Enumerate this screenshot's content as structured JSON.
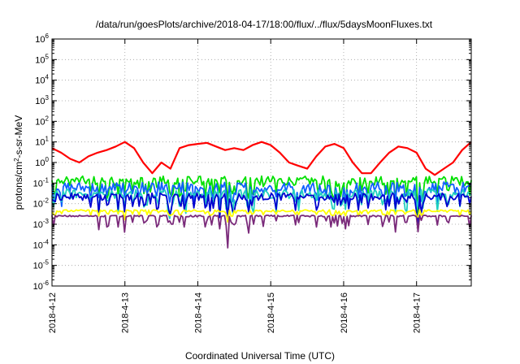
{
  "chart_data": {
    "type": "line",
    "title": "/data/run/goesPlots/archive/2018-04-17/18:00/flux/../flux/5daysMoonFluxes.txt",
    "xlabel": "Coordinated Universal Time (UTC)",
    "ylabel": {
      "pre": "protons/cm",
      "sup": "2",
      "post": "-s-sr-MeV"
    },
    "x_ticks": [
      "2018-4-12",
      "2018-4-13",
      "2018-4-14",
      "2018-4-15",
      "2018-4-16",
      "2018-4-17"
    ],
    "xlim": [
      "2018-04-12T00:00",
      "2018-04-17T18:00"
    ],
    "y_scale": "log",
    "ylim": [
      1e-06,
      1000000.0
    ],
    "y_ticks": [
      {
        "base": "10",
        "exp": "6"
      },
      {
        "base": "10",
        "exp": "5"
      },
      {
        "base": "10",
        "exp": "4"
      },
      {
        "base": "10",
        "exp": "3"
      },
      {
        "base": "10",
        "exp": "2"
      },
      {
        "base": "10",
        "exp": "1"
      },
      {
        "base": "10",
        "exp": "0"
      },
      {
        "base": "10",
        "exp": "-1"
      },
      {
        "base": "10",
        "exp": "-2"
      },
      {
        "base": "10",
        "exp": "-3"
      },
      {
        "base": "10",
        "exp": "-4"
      },
      {
        "base": "10",
        "exp": "-5"
      },
      {
        "base": "10",
        "exp": "-6"
      }
    ],
    "grid": true,
    "series": [
      {
        "color": "#ff0000",
        "points": [
          [
            "2018-04-12T00:00",
            5
          ],
          [
            "2018-04-12T03:00",
            3
          ],
          [
            "2018-04-12T06:00",
            1.5
          ],
          [
            "2018-04-12T09:00",
            1
          ],
          [
            "2018-04-12T12:00",
            2
          ],
          [
            "2018-04-12T15:00",
            3
          ],
          [
            "2018-04-12T18:00",
            4
          ],
          [
            "2018-04-12T21:00",
            6
          ],
          [
            "2018-04-13T00:00",
            10
          ],
          [
            "2018-04-13T03:00",
            5
          ],
          [
            "2018-04-13T06:00",
            1
          ],
          [
            "2018-04-13T09:00",
            0.3
          ],
          [
            "2018-04-13T12:00",
            1
          ],
          [
            "2018-04-13T15:00",
            0.5
          ],
          [
            "2018-04-13T18:00",
            5
          ],
          [
            "2018-04-13T21:00",
            7
          ],
          [
            "2018-04-14T00:00",
            8
          ],
          [
            "2018-04-14T03:00",
            9
          ],
          [
            "2018-04-14T06:00",
            6
          ],
          [
            "2018-04-14T09:00",
            4
          ],
          [
            "2018-04-14T12:00",
            5
          ],
          [
            "2018-04-14T15:00",
            4
          ],
          [
            "2018-04-14T18:00",
            7
          ],
          [
            "2018-04-14T21:00",
            10
          ],
          [
            "2018-04-15T00:00",
            7
          ],
          [
            "2018-04-15T03:00",
            3
          ],
          [
            "2018-04-15T06:00",
            1
          ],
          [
            "2018-04-15T09:00",
            0.7
          ],
          [
            "2018-04-15T12:00",
            0.5
          ],
          [
            "2018-04-15T15:00",
            2
          ],
          [
            "2018-04-15T18:00",
            6
          ],
          [
            "2018-04-15T21:00",
            8
          ],
          [
            "2018-04-16T00:00",
            5
          ],
          [
            "2018-04-16T03:00",
            1
          ],
          [
            "2018-04-16T06:00",
            0.3
          ],
          [
            "2018-04-16T09:00",
            0.3
          ],
          [
            "2018-04-16T12:00",
            1
          ],
          [
            "2018-04-16T15:00",
            3
          ],
          [
            "2018-04-16T18:00",
            6
          ],
          [
            "2018-04-16T21:00",
            5
          ],
          [
            "2018-04-17T00:00",
            3
          ],
          [
            "2018-04-17T03:00",
            0.5
          ],
          [
            "2018-04-17T06:00",
            0.25
          ],
          [
            "2018-04-17T09:00",
            0.5
          ],
          [
            "2018-04-17T12:00",
            1
          ],
          [
            "2018-04-17T15:00",
            4
          ],
          [
            "2018-04-17T18:00",
            10
          ]
        ]
      },
      {
        "color": "#00e000",
        "base": 0.13,
        "band": 0.45,
        "dips": 0.5
      },
      {
        "color": "#1060ff",
        "base": 0.06,
        "band": 0.55,
        "dips": 0.45
      },
      {
        "color": "#20d0c0",
        "base": 0.03,
        "band": 0.45,
        "dips": 0.5
      },
      {
        "color": "#0000d0",
        "base": 0.022,
        "band": 0.35,
        "dips": 0.4
      },
      {
        "color": "#ffff00",
        "base": 0.0045,
        "band": 0.1,
        "dips": 0.15
      },
      {
        "color": "#7a2a7a",
        "base": 0.0025,
        "band": 0.08,
        "dips": 0.35
      }
    ]
  }
}
